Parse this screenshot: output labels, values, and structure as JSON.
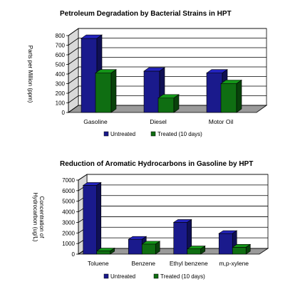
{
  "chart_data": [
    {
      "type": "bar",
      "title": "Petroleum Degradation by Bacterial Strains in HPT",
      "ylabel": "Parts per Million (ppm)",
      "xlabel": "",
      "categories": [
        "Gasoline",
        "Diesel",
        "Motor Oil"
      ],
      "series": [
        {
          "name": "Untreated",
          "values": [
            770,
            430,
            410
          ]
        },
        {
          "name": "Treated (10 days)",
          "values": [
            410,
            150,
            300
          ]
        }
      ],
      "ylim": [
        0,
        800
      ],
      "yticks": [
        0,
        100,
        200,
        300,
        400,
        500,
        600,
        700,
        800
      ],
      "grid": true,
      "legend": "bottom",
      "colors": {
        "untreated": "#1a1a8c",
        "treated": "#0f6e12",
        "axis": "#000000"
      }
    },
    {
      "type": "bar",
      "title": "Reduction of Aromatic Hydrocarbons in Gasoline by HPT",
      "ylabel": "Concentration of Hydrocarbon (ug/L)",
      "xlabel": "",
      "categories": [
        "Toluene",
        "Benzene",
        "Ethyl benzene",
        "m,p-xylene"
      ],
      "series": [
        {
          "name": "Untreated",
          "values": [
            6500,
            1400,
            3000,
            1950
          ]
        },
        {
          "name": "Treated (10 days)",
          "values": [
            300,
            950,
            500,
            650
          ]
        }
      ],
      "ylim": [
        0,
        7000
      ],
      "yticks": [
        0,
        1000,
        2000,
        3000,
        4000,
        5000,
        6000,
        7000
      ],
      "grid": true,
      "legend": "bottom",
      "colors": {
        "untreated": "#1a1a8c",
        "treated": "#0f6e12",
        "axis": "#000000"
      }
    }
  ]
}
